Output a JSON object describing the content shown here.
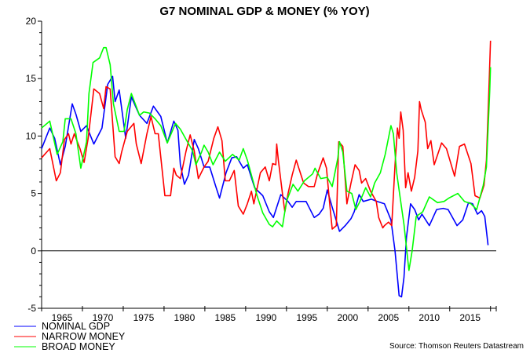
{
  "chart_data": {
    "type": "line",
    "title": "G7 NOMINAL GDP & MONEY (% YOY)",
    "xlabel": "",
    "ylabel": "",
    "xlim": [
      1962.5,
      2018.2
    ],
    "ylim": [
      -5,
      20
    ],
    "yticks": [
      20,
      15,
      10,
      5,
      0,
      -5
    ],
    "y_minor_step": 1,
    "xticks": [
      1965,
      1970,
      1975,
      1980,
      1985,
      1990,
      1995,
      2000,
      2005,
      2010,
      2015
    ],
    "zero_line": true,
    "grid": false,
    "legend_position": "bottom-left",
    "source": "Source: Thomson Reuters Datastream",
    "series": [
      {
        "name": "NOMINAL GDP",
        "color": "#0000ff",
        "x": [
          1962.5,
          1963.5,
          1964.1,
          1964.8,
          1965.4,
          1966.25,
          1966.7,
          1967.3,
          1968,
          1968.5,
          1968.9,
          1969.9,
          1970.6,
          1971.2,
          1971.5,
          1972,
          1972.8,
          1973.5,
          1974.5,
          1975.4,
          1976.2,
          1977.1,
          1977.9,
          1978.7,
          1979.2,
          1979.5,
          1980,
          1980.5,
          1981.2,
          1981.7,
          1982.4,
          1983.1,
          1983.8,
          1984.3,
          1985.1,
          1985.8,
          1986.4,
          1987.2,
          1987.7,
          1988.6,
          1989.6,
          1990.4,
          1990.9,
          1991.8,
          1992.7,
          1993.2,
          1993.7,
          1994.9,
          1995.9,
          1996.5,
          1997,
          1997.5,
          1998.1,
          1999,
          1999.7,
          2000.4,
          2000.8,
          2001.4,
          2001.9,
          2002.9,
          2003.6,
          2004.5,
          2005.3,
          2005.8,
          2006.3,
          2006.6,
          2006.9,
          2007.2,
          2007.7,
          2008.2,
          2008.7,
          2009.1,
          2010,
          2010.9,
          2011.7,
          2012.3,
          2013.4,
          2014.1,
          2014.8,
          2015.3,
          2015.9,
          2016.4,
          2016.8,
          2017.2
        ],
        "values": [
          8.9,
          10.7,
          9.8,
          7.5,
          9.1,
          12.8,
          11.9,
          10.4,
          10.9,
          10.0,
          9.3,
          10.7,
          14.5,
          15.2,
          13.0,
          14.0,
          9.8,
          13.4,
          11.8,
          11.1,
          12.6,
          11.7,
          9.4,
          11.3,
          10.5,
          7.5,
          5.8,
          6.6,
          9.7,
          8.9,
          7.3,
          7.3,
          5.7,
          4.6,
          6.8,
          8.1,
          8.2,
          7.2,
          7.5,
          5.5,
          4.8,
          3.4,
          2.9,
          4.9,
          4.3,
          3.8,
          4.3,
          4.3,
          2.9,
          3.2,
          3.7,
          5.3,
          3.8,
          1.7,
          2.2,
          2.8,
          3.4,
          4.9,
          4.3,
          4.5,
          4.3,
          4.1,
          2.7,
          0.0,
          -3.9,
          -4.0,
          -2.3,
          1.2,
          4.1,
          3.6,
          2.7,
          3.2,
          2.2,
          3.6,
          3.7,
          3.6,
          2.2,
          2.7,
          4.2,
          4.1,
          3.2,
          3.5,
          3.0,
          0.5
        ]
      },
      {
        "name": "NARROW MONEY",
        "color": "#ff0000",
        "x": [
          1962.5,
          1963.5,
          1964.3,
          1964.8,
          1965.3,
          1965.8,
          1966.1,
          1966.5,
          1967.2,
          1967.7,
          1968.2,
          1968.9,
          1969.6,
          1970.1,
          1970.4,
          1970.9,
          1971.5,
          1972,
          1972.3,
          1973,
          1973.8,
          1974.1,
          1974.7,
          1975.4,
          1975.9,
          1976.4,
          1976.8,
          1977.6,
          1978.3,
          1978.7,
          1979,
          1979.5,
          1980.2,
          1980.7,
          1981.2,
          1981.7,
          1982.4,
          1982.9,
          1983.6,
          1984.1,
          1984.6,
          1985,
          1985.5,
          1986.1,
          1986.6,
          1987.2,
          1987.7,
          1988.2,
          1988.5,
          1989.3,
          1989.9,
          1990.4,
          1990.8,
          1991.2,
          1991.3,
          1991.5,
          1992,
          1992.3,
          1992.7,
          1993.2,
          1993.7,
          1994.1,
          1994.6,
          1995.2,
          1995.9,
          1996.3,
          1997,
          1997.4,
          1997.8,
          1998.1,
          1998.6,
          1998.9,
          1999.4,
          1999.9,
          2000.4,
          2000.9,
          2001.4,
          2001.7,
          2002.2,
          2002.8,
          2003.5,
          2003.8,
          2004.3,
          2004.5,
          2005,
          2005.4,
          2005.8,
          2006.1,
          2006.3,
          2006.5,
          2006.8,
          2007.1,
          2007.4,
          2007.8,
          2008.2,
          2008.6,
          2008.8,
          2009,
          2009.5,
          2009.8,
          2010.2,
          2010.6,
          2011.5,
          2012.1,
          2013.1,
          2013.7,
          2014.3,
          2015.1,
          2015.6,
          2016.2,
          2016.7,
          2017,
          2017.3,
          2017.5
        ],
        "values": [
          8.1,
          8.9,
          6.1,
          6.8,
          9.7,
          10.2,
          9.3,
          10.2,
          8.9,
          7.7,
          9.8,
          14.1,
          13.7,
          12.4,
          14.3,
          14.1,
          8.2,
          7.6,
          8.6,
          10.4,
          11.1,
          9.3,
          7.6,
          10.2,
          11.7,
          10.2,
          10.2,
          4.8,
          4.8,
          7.2,
          6.6,
          6.3,
          8.7,
          10.1,
          8.7,
          6.3,
          7.3,
          7.8,
          9.8,
          10.8,
          9.6,
          6.1,
          6.1,
          7.0,
          3.9,
          3.2,
          4.1,
          5.2,
          4.1,
          6.8,
          7.3,
          6.1,
          7.6,
          7.5,
          9.3,
          7.9,
          5.0,
          3.4,
          5.0,
          6.6,
          7.9,
          7.0,
          5.9,
          5.6,
          5.6,
          6.7,
          8.1,
          7.2,
          4.1,
          1.9,
          2.2,
          9.5,
          9.1,
          4.1,
          5.9,
          7.5,
          7.0,
          5.9,
          6.3,
          5.2,
          4.3,
          2.9,
          2.0,
          2.2,
          2.5,
          2.2,
          7.5,
          10.7,
          9.8,
          12.1,
          10.5,
          5.5,
          6.8,
          5.2,
          6.4,
          8.7,
          13.0,
          12.3,
          11.2,
          8.9,
          9.6,
          7.5,
          9.4,
          8.9,
          6.5,
          9.1,
          9.3,
          7.6,
          4.8,
          4.6,
          5.7,
          7.9,
          13.9,
          18.3
        ]
      },
      {
        "name": "BROAD MONEY",
        "color": "#00ff00",
        "x": [
          1962.5,
          1963.5,
          1964.4,
          1965.1,
          1965.4,
          1966.1,
          1966.7,
          1967.3,
          1968,
          1968.3,
          1968.8,
          1969.6,
          1970.1,
          1970.4,
          1970.9,
          1971.3,
          1972,
          1972.6,
          1973,
          1973.5,
          1974.5,
          1975,
          1975.7,
          1976.4,
          1977.1,
          1977.9,
          1978.9,
          1979.5,
          1980.2,
          1981,
          1981.4,
          1982.1,
          1982.4,
          1982.9,
          1983.5,
          1984.3,
          1985,
          1985.9,
          1986.7,
          1987.2,
          1987.7,
          1988.4,
          1988.9,
          1989.6,
          1990.4,
          1990.8,
          1991.3,
          1992,
          1992.5,
          1993.3,
          1993.9,
          1994.7,
          1995.7,
          1996,
          1996.7,
          1997.5,
          1998.1,
          1998.8,
          1999,
          1999.4,
          1999.9,
          2000.5,
          2001,
          2001.5,
          2002.2,
          2002.8,
          2003.3,
          2004,
          2004.6,
          2005.3,
          2005.6,
          2006,
          2006.4,
          2006.9,
          2007.5,
          2007.9,
          2008.4,
          2009.2,
          2010,
          2011,
          2011.8,
          2012.4,
          2013.5,
          2014.3,
          2015.1,
          2015.8,
          2016.6,
          2017,
          2017.4,
          2017.5
        ],
        "values": [
          10.7,
          11.3,
          8.4,
          9.5,
          11.5,
          11.5,
          10.2,
          7.2,
          9.5,
          13.7,
          16.4,
          16.8,
          17.7,
          17.7,
          16.2,
          12.8,
          10.4,
          10.4,
          12.3,
          13.7,
          11.8,
          12.1,
          12.0,
          11.5,
          10.9,
          9.4,
          11.1,
          10.6,
          9.7,
          8.7,
          7.5,
          8.6,
          9.2,
          8.6,
          7.5,
          8.6,
          7.8,
          8.4,
          7.9,
          8.9,
          7.9,
          6.1,
          4.8,
          3.3,
          2.3,
          2.1,
          2.6,
          2.1,
          4.3,
          5.8,
          5.2,
          6.1,
          6.7,
          7.2,
          6.3,
          6.4,
          5.6,
          8.1,
          9.5,
          8.6,
          5.2,
          5.0,
          3.6,
          4.3,
          5.5,
          4.7,
          5.9,
          6.8,
          8.4,
          10.9,
          10.2,
          6.8,
          4.8,
          2.3,
          -1.7,
          0.0,
          3.0,
          3.4,
          4.7,
          4.2,
          4.3,
          4.6,
          5.0,
          4.3,
          4.1,
          3.6,
          5.7,
          7.3,
          13.9,
          16.0
        ]
      }
    ]
  }
}
